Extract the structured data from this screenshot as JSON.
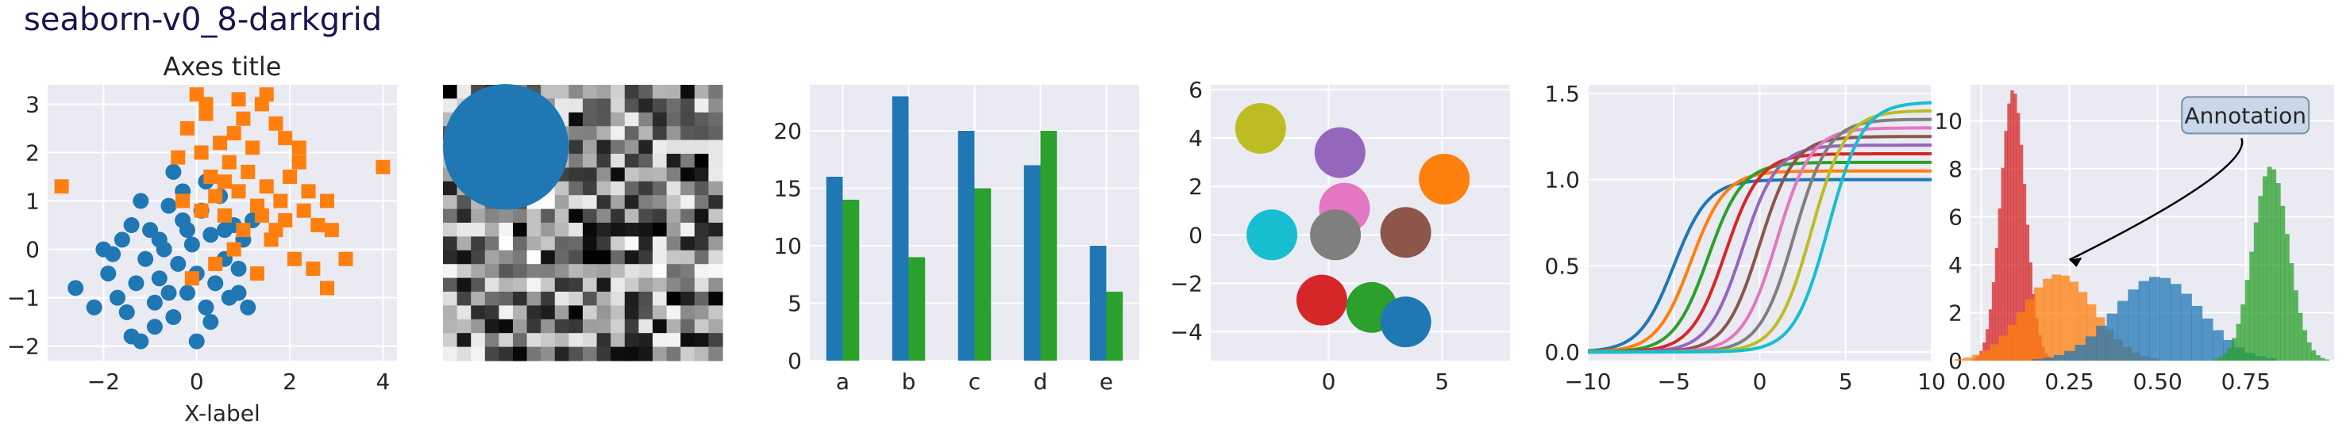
{
  "figure": {
    "title": "seaborn-v0_8-darkgrid"
  },
  "style": {
    "axes_facecolor": "#eaeaf2",
    "grid_color": "#ffffff",
    "text_color": "#262626",
    "title_color": "#1a1450",
    "palette": [
      "#1f77b4",
      "#ff7f0e",
      "#2ca02c",
      "#d62728",
      "#9467bd",
      "#8c564b",
      "#e377c2",
      "#7f7f7f",
      "#bcbd22",
      "#17becf"
    ]
  },
  "chart_data": [
    {
      "type": "scatter",
      "title": "Axes title",
      "xlabel": "X-label",
      "ylabel": "",
      "xlim": [
        -3.2,
        4.3
      ],
      "ylim": [
        -2.3,
        3.4
      ],
      "xticks": [
        -2,
        0,
        2,
        4
      ],
      "yticks": [
        -2,
        -1,
        0,
        1,
        2,
        3
      ],
      "grid": true,
      "series": [
        {
          "marker": "circle",
          "color": "#1f77b4",
          "points": [
            [
              -2.6,
              -0.8
            ],
            [
              -2.2,
              -1.2
            ],
            [
              -1.9,
              -0.5
            ],
            [
              -1.8,
              -0.1
            ],
            [
              -1.6,
              0.2
            ],
            [
              -1.5,
              -1.3
            ],
            [
              -1.3,
              -0.7
            ],
            [
              -1.2,
              -1.9
            ],
            [
              -1.1,
              -0.2
            ],
            [
              -1.0,
              0.4
            ],
            [
              -0.9,
              -1.1
            ],
            [
              -0.8,
              -0.6
            ],
            [
              -0.7,
              0.0
            ],
            [
              -0.6,
              0.9
            ],
            [
              -0.5,
              -1.4
            ],
            [
              -0.4,
              -0.3
            ],
            [
              -0.3,
              0.6
            ],
            [
              -0.2,
              -0.9
            ],
            [
              -0.1,
              0.1
            ],
            [
              0.0,
              -0.5
            ],
            [
              0.1,
              0.8
            ],
            [
              0.2,
              -1.2
            ],
            [
              0.3,
              0.3
            ],
            [
              0.4,
              -0.7
            ],
            [
              0.5,
              1.1
            ],
            [
              0.6,
              -0.2
            ],
            [
              0.7,
              -1.0
            ],
            [
              0.8,
              0.5
            ],
            [
              0.9,
              -0.4
            ],
            [
              1.0,
              0.2
            ],
            [
              1.1,
              -1.2
            ],
            [
              0.2,
              1.4
            ],
            [
              -0.3,
              1.2
            ],
            [
              -1.4,
              0.5
            ],
            [
              -0.9,
              -1.6
            ],
            [
              0.3,
              -1.5
            ],
            [
              -0.6,
              -0.9
            ],
            [
              -1.7,
              -1.0
            ],
            [
              -0.2,
              0.4
            ],
            [
              0.6,
              0.4
            ],
            [
              -2.0,
              0.0
            ],
            [
              -1.2,
              1.0
            ],
            [
              0.0,
              -1.9
            ],
            [
              -0.5,
              1.6
            ],
            [
              1.2,
              0.6
            ],
            [
              -1.4,
              -1.8
            ],
            [
              0.9,
              -0.9
            ],
            [
              -0.8,
              0.2
            ]
          ]
        },
        {
          "marker": "square",
          "color": "#ff7f0e",
          "points": [
            [
              -2.9,
              1.3
            ],
            [
              -0.4,
              1.9
            ],
            [
              -0.2,
              2.5
            ],
            [
              0.0,
              3.2
            ],
            [
              0.1,
              2.0
            ],
            [
              0.2,
              2.8
            ],
            [
              0.3,
              1.5
            ],
            [
              0.4,
              1.1
            ],
            [
              0.5,
              2.2
            ],
            [
              0.6,
              0.7
            ],
            [
              0.7,
              1.8
            ],
            [
              0.8,
              2.4
            ],
            [
              0.9,
              1.2
            ],
            [
              1.0,
              0.4
            ],
            [
              1.1,
              1.6
            ],
            [
              1.2,
              2.1
            ],
            [
              1.3,
              0.9
            ],
            [
              1.4,
              3.0
            ],
            [
              1.5,
              1.3
            ],
            [
              1.6,
              0.2
            ],
            [
              1.7,
              2.6
            ],
            [
              1.8,
              1.0
            ],
            [
              1.9,
              0.6
            ],
            [
              2.0,
              1.5
            ],
            [
              2.1,
              -0.2
            ],
            [
              2.2,
              1.8
            ],
            [
              2.3,
              0.8
            ],
            [
              2.4,
              1.2
            ],
            [
              2.5,
              -0.4
            ],
            [
              2.6,
              0.5
            ],
            [
              2.8,
              1.0
            ],
            [
              3.2,
              -0.2
            ],
            [
              2.8,
              -0.8
            ],
            [
              4.0,
              1.7
            ],
            [
              1.5,
              3.2
            ],
            [
              0.9,
              3.1
            ],
            [
              -0.3,
              1.0
            ],
            [
              0.4,
              -0.3
            ],
            [
              1.3,
              -0.5
            ],
            [
              0.8,
              0.0
            ],
            [
              1.7,
              0.4
            ],
            [
              2.2,
              2.1
            ],
            [
              0.1,
              0.8
            ],
            [
              1.0,
              2.7
            ],
            [
              1.9,
              2.3
            ],
            [
              0.6,
              1.4
            ],
            [
              1.4,
              0.7
            ],
            [
              2.9,
              0.4
            ],
            [
              -0.1,
              -0.6
            ],
            [
              0.2,
              3.0
            ]
          ]
        }
      ]
    },
    {
      "type": "heatmap",
      "title": "",
      "rows": 20,
      "cols": 20,
      "overlay": "circle",
      "overlay_color": "#1f77b4"
    },
    {
      "type": "bar",
      "categories": [
        "a",
        "b",
        "c",
        "d",
        "e"
      ],
      "ylim": [
        0,
        24
      ],
      "yticks": [
        0,
        5,
        10,
        15,
        20
      ],
      "series": [
        {
          "color": "#1f77b4",
          "values": [
            16,
            23,
            20,
            17,
            10
          ]
        },
        {
          "color": "#2ca02c",
          "values": [
            14,
            9,
            15,
            20,
            6
          ]
        }
      ]
    },
    {
      "type": "scatter",
      "xlim": [
        -5.2,
        8
      ],
      "ylim": [
        -5.2,
        6.2
      ],
      "xticks": [
        0,
        5
      ],
      "yticks": [
        -4,
        -2,
        0,
        2,
        4,
        6
      ],
      "points": [
        {
          "x": -3.0,
          "y": 4.4,
          "color": "#bcbd22"
        },
        {
          "x": 0.5,
          "y": 3.4,
          "color": "#9467bd"
        },
        {
          "x": 5.1,
          "y": 2.3,
          "color": "#ff7f0e"
        },
        {
          "x": 0.7,
          "y": 1.1,
          "color": "#e377c2"
        },
        {
          "x": -2.5,
          "y": 0.0,
          "color": "#17becf"
        },
        {
          "x": 0.3,
          "y": 0.0,
          "color": "#7f7f7f"
        },
        {
          "x": 3.4,
          "y": 0.1,
          "color": "#8c564b"
        },
        {
          "x": -0.3,
          "y": -2.7,
          "color": "#d62728"
        },
        {
          "x": 1.9,
          "y": -3.0,
          "color": "#2ca02c"
        },
        {
          "x": 3.4,
          "y": -3.6,
          "color": "#1f77b4"
        }
      ]
    },
    {
      "type": "line",
      "xlim": [
        -10,
        10
      ],
      "ylim": [
        -0.05,
        1.55
      ],
      "xticks": [
        -10,
        -5,
        0,
        5,
        10
      ],
      "yticks": [
        0.0,
        0.5,
        1.0,
        1.5
      ],
      "series": [
        {
          "color": "#1f77b4",
          "shift": -5,
          "amplitude": 1.0
        },
        {
          "color": "#ff7f0e",
          "shift": -4,
          "amplitude": 1.05
        },
        {
          "color": "#2ca02c",
          "shift": -3,
          "amplitude": 1.1
        },
        {
          "color": "#d62728",
          "shift": -2,
          "amplitude": 1.15
        },
        {
          "color": "#9467bd",
          "shift": -1,
          "amplitude": 1.2
        },
        {
          "color": "#8c564b",
          "shift": 0,
          "amplitude": 1.25
        },
        {
          "color": "#e377c2",
          "shift": 1,
          "amplitude": 1.3
        },
        {
          "color": "#7f7f7f",
          "shift": 2,
          "amplitude": 1.35
        },
        {
          "color": "#bcbd22",
          "shift": 3,
          "amplitude": 1.4
        },
        {
          "color": "#17becf",
          "shift": 4,
          "amplitude": 1.45
        }
      ]
    },
    {
      "type": "bar",
      "subtype": "histogram",
      "xlim": [
        -0.03,
        1.0
      ],
      "ylim": [
        0,
        11.5
      ],
      "xticks": [
        0.0,
        0.25,
        0.5,
        0.75
      ],
      "xticklabels": [
        "0.00",
        "0.25",
        "0.50",
        "0.75"
      ],
      "yticks": [
        0,
        2,
        4,
        6,
        8,
        10
      ],
      "annotation": {
        "text": "Annotation",
        "xy": [
          0.25,
          4.2
        ],
        "xytext": [
          0.58,
          10.0
        ]
      },
      "series": [
        {
          "color": "#d62728",
          "mean": 0.09,
          "std": 0.035,
          "peak": 11.3
        },
        {
          "color": "#ff7f0e",
          "mean": 0.22,
          "std": 0.1,
          "peak": 3.6
        },
        {
          "color": "#1f77b4",
          "mean": 0.5,
          "std": 0.12,
          "peak": 3.5
        },
        {
          "color": "#2ca02c",
          "mean": 0.82,
          "std": 0.05,
          "peak": 8.1
        }
      ]
    }
  ]
}
